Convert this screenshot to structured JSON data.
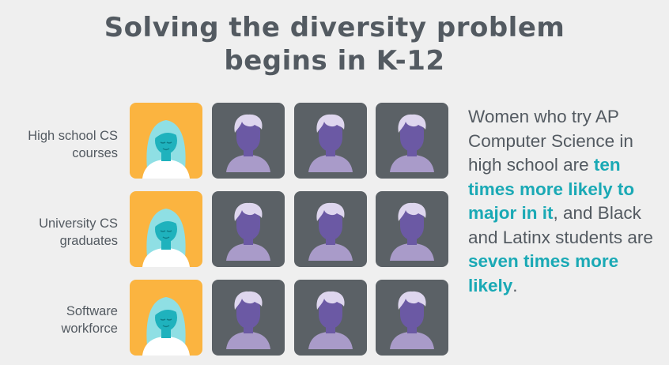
{
  "title": {
    "line1": "Solving the diversity problem",
    "line2": "begins in K-12"
  },
  "rows": [
    {
      "label_line1": "High school CS",
      "label_line2": "courses"
    },
    {
      "label_line1": "University CS",
      "label_line2": "graduates"
    },
    {
      "label_line1": "Software",
      "label_line2": "workforce"
    }
  ],
  "tiles": {
    "woman_tile_color": "#fbb440",
    "man_tile_color": "#5b6166",
    "icons": [
      "woman-avatar-icon",
      "man-avatar-icon",
      "man-avatar-icon",
      "man-avatar-icon"
    ]
  },
  "statement": {
    "part1": "Women who try AP Computer Science in high school are ",
    "highlight1": "ten times more likely to major in it",
    "part2": ", and Black and Latinx students are ",
    "highlight2": "seven times more likely",
    "part3": ".",
    "highlight_color": "#1aa9b5"
  }
}
